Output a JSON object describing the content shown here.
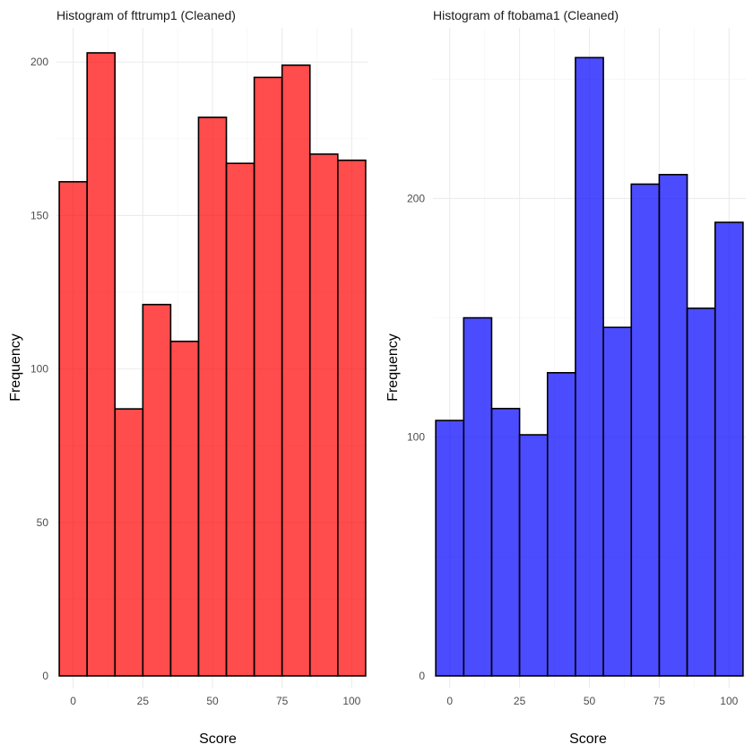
{
  "chart_data": [
    {
      "type": "bar",
      "title": "Histogram of fttrump1 (Cleaned)",
      "xlabel": "Score",
      "ylabel": "Frequency",
      "fill_color": "#ff0000",
      "fill_opacity": 0.7,
      "edge_color": "#000000",
      "bin_width": 10,
      "bin_centers": [
        0,
        10,
        20,
        30,
        40,
        50,
        60,
        70,
        80,
        90,
        100
      ],
      "values": [
        161,
        203,
        87,
        121,
        109,
        182,
        167,
        195,
        199,
        170,
        168
      ],
      "xlim": [
        -6,
        106
      ],
      "ylim": [
        0,
        210
      ],
      "x_ticks": [
        0,
        25,
        50,
        75,
        100
      ],
      "x_tick_labels": [
        "0",
        "25",
        "50",
        "75",
        "100"
      ],
      "y_ticks": [
        0,
        50,
        100,
        150,
        200
      ],
      "y_tick_labels": [
        "0",
        "50",
        "100",
        "150",
        "200"
      ],
      "grid": true
    },
    {
      "type": "bar",
      "title": "Histogram of ftobama1 (Cleaned)",
      "xlabel": "Score",
      "ylabel": "Frequency",
      "fill_color": "#0000ff",
      "fill_opacity": 0.7,
      "edge_color": "#000000",
      "bin_width": 10,
      "bin_centers": [
        0,
        10,
        20,
        30,
        40,
        50,
        60,
        70,
        80,
        90,
        100
      ],
      "values": [
        107,
        150,
        112,
        101,
        127,
        259,
        146,
        206,
        210,
        154,
        190
      ],
      "xlim": [
        -6,
        106
      ],
      "ylim": [
        0,
        270
      ],
      "x_ticks": [
        0,
        25,
        50,
        75,
        100
      ],
      "x_tick_labels": [
        "0",
        "25",
        "50",
        "75",
        "100"
      ],
      "y_ticks": [
        0,
        100,
        200
      ],
      "y_tick_labels": [
        "0",
        "100",
        "200"
      ],
      "grid": true
    }
  ]
}
